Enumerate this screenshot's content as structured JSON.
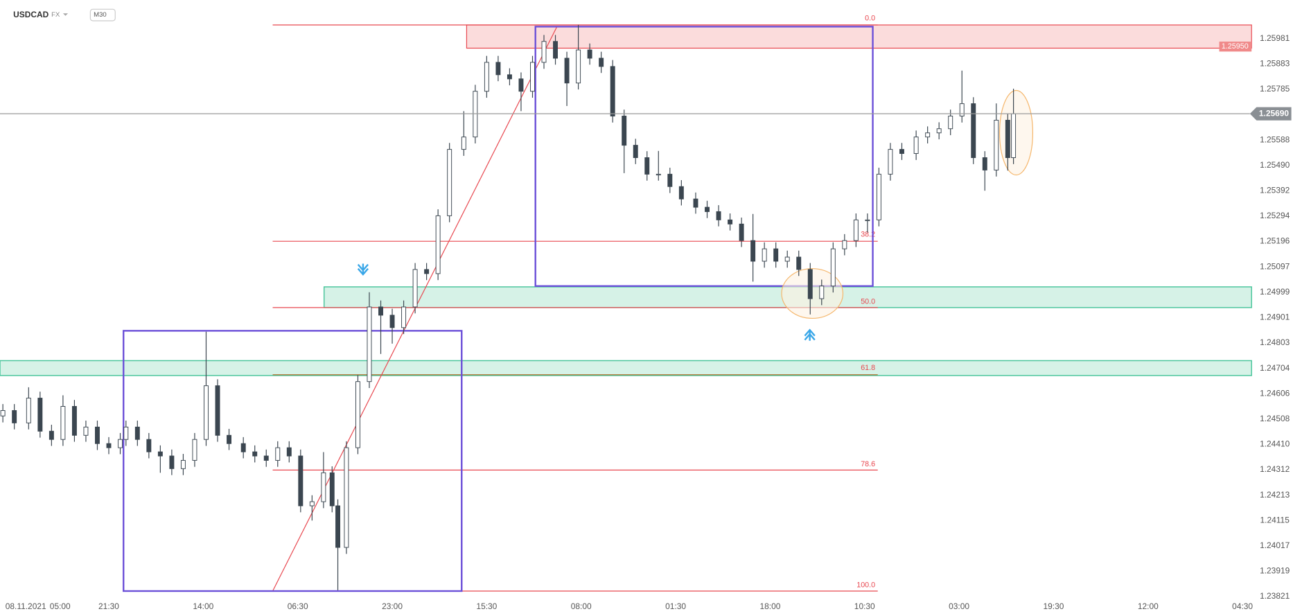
{
  "header": {
    "symbol": "USDCAD",
    "market": "FX",
    "interval": "M30"
  },
  "chart_data": {
    "type": "candlestick",
    "up_color": "#ffffff",
    "down_color": "#3b4650",
    "outline_color": "#3b4650",
    "x": [
      1,
      5,
      10,
      14,
      18,
      22,
      26,
      30,
      34,
      38,
      42,
      44,
      48,
      52,
      56,
      60,
      64,
      68,
      72,
      76,
      80,
      85,
      89,
      93,
      97,
      101,
      105,
      109,
      113,
      116,
      118,
      121,
      125,
      129,
      133,
      137,
      141,
      145,
      149,
      153,
      157,
      162,
      166,
      170,
      174,
      178,
      182,
      186,
      190,
      194,
      198,
      202,
      206,
      210,
      214,
      218,
      222,
      226,
      230,
      234,
      238,
      243,
      247,
      251,
      255,
      259,
      263,
      267,
      271,
      275,
      279,
      283,
      287,
      291,
      295,
      299,
      303,
      307,
      311,
      315,
      320,
      324,
      328,
      332,
      336,
      340,
      344,
      348,
      352,
      354
    ],
    "open": [
      1.2452,
      1.24541,
      1.24493,
      1.24589,
      1.24461,
      1.24429,
      1.24557,
      1.24445,
      1.24477,
      1.24413,
      1.24397,
      1.24429,
      1.24477,
      1.24429,
      1.24381,
      1.24365,
      1.24316,
      1.24348,
      1.24429,
      1.24637,
      1.24445,
      1.24413,
      1.24381,
      1.24365,
      1.24348,
      1.24397,
      1.24365,
      1.24172,
      1.24188,
      1.243,
      1.24172,
      1.24011,
      1.24397,
      1.24653,
      1.24942,
      1.2491,
      1.24862,
      1.24942,
      1.25087,
      1.25071,
      1.25295,
      1.25552,
      1.256,
      1.25777,
      1.25889,
      1.25841,
      1.25825,
      1.25777,
      1.25889,
      1.2597,
      1.25905,
      1.25809,
      1.25937,
      1.25905,
      1.25873,
      1.25681,
      1.25568,
      1.2552,
      1.25456,
      1.25456,
      1.25408,
      1.2536,
      1.25328,
      1.25311,
      1.25279,
      1.25263,
      1.25199,
      1.25119,
      1.25167,
      1.25119,
      1.25135,
      1.25087,
      1.24974,
      1.25023,
      1.25167,
      1.25199,
      1.25279,
      1.25279,
      1.25456,
      1.25552,
      1.25536,
      1.256,
      1.25616,
      1.25632,
      1.25681,
      1.25729,
      1.2552,
      1.25472,
      1.25665,
      1.2552
    ],
    "high": [
      1.24566,
      1.24566,
      1.24631,
      1.24614,
      1.24486,
      1.246,
      1.24582,
      1.24502,
      1.24502,
      1.24438,
      1.24454,
      1.24502,
      1.24502,
      1.24454,
      1.24406,
      1.2439,
      1.24373,
      1.24454,
      1.24846,
      1.24662,
      1.2447,
      1.24438,
      1.24406,
      1.2439,
      1.24422,
      1.24422,
      1.2439,
      1.24213,
      1.2438,
      1.24325,
      1.24197,
      1.24422,
      1.24678,
      1.24999,
      1.24967,
      1.24935,
      1.24967,
      1.25112,
      1.25112,
      1.2532,
      1.25577,
      1.257,
      1.25802,
      1.25914,
      1.25914,
      1.25866,
      1.2585,
      1.25914,
      1.25995,
      1.25995,
      1.2593,
      1.26034,
      1.25962,
      1.2593,
      1.25898,
      1.25706,
      1.25593,
      1.25545,
      1.25546,
      1.25481,
      1.25433,
      1.25385,
      1.25353,
      1.25336,
      1.25304,
      1.25288,
      1.25302,
      1.25192,
      1.25192,
      1.2516,
      1.2516,
      1.25112,
      1.25048,
      1.25192,
      1.25224,
      1.25304,
      1.25304,
      1.25481,
      1.25577,
      1.25577,
      1.25625,
      1.25641,
      1.25657,
      1.25706,
      1.25857,
      1.25754,
      1.25545,
      1.2573,
      1.2569,
      1.25787
    ],
    "low": [
      1.24495,
      1.24468,
      1.24468,
      1.24436,
      1.24404,
      1.24404,
      1.2442,
      1.2442,
      1.24388,
      1.24372,
      1.24372,
      1.24404,
      1.24404,
      1.24356,
      1.243,
      1.24291,
      1.24291,
      1.24323,
      1.24404,
      1.2442,
      1.24388,
      1.24356,
      1.2434,
      1.24323,
      1.24323,
      1.2434,
      1.24147,
      1.24115,
      1.24163,
      1.24147,
      1.23845,
      1.23986,
      1.24372,
      1.24628,
      1.2476,
      1.248,
      1.24837,
      1.24917,
      1.25046,
      1.25046,
      1.2527,
      1.25527,
      1.25575,
      1.25752,
      1.25816,
      1.258,
      1.257,
      1.25752,
      1.25864,
      1.2588,
      1.2572,
      1.25784,
      1.2588,
      1.25848,
      1.25656,
      1.2546,
      1.25495,
      1.25431,
      1.25431,
      1.25383,
      1.25335,
      1.25303,
      1.25286,
      1.25254,
      1.25238,
      1.25174,
      1.2504,
      1.25094,
      1.25094,
      1.25094,
      1.25062,
      1.24913,
      1.24949,
      1.24998,
      1.25142,
      1.25174,
      1.2523,
      1.25254,
      1.25431,
      1.25511,
      1.25511,
      1.25575,
      1.25591,
      1.25607,
      1.25656,
      1.25495,
      1.25392,
      1.25447,
      1.2547,
      1.25495
    ],
    "close": [
      1.24541,
      1.24493,
      1.24589,
      1.24461,
      1.24429,
      1.24557,
      1.24445,
      1.24477,
      1.24413,
      1.24397,
      1.24429,
      1.24477,
      1.24429,
      1.24381,
      1.24365,
      1.24316,
      1.24348,
      1.24429,
      1.24637,
      1.24445,
      1.24413,
      1.24381,
      1.24365,
      1.24348,
      1.24397,
      1.24365,
      1.24172,
      1.24188,
      1.243,
      1.24172,
      1.24011,
      1.24397,
      1.24653,
      1.24942,
      1.2491,
      1.24862,
      1.24942,
      1.25087,
      1.25071,
      1.25295,
      1.25552,
      1.256,
      1.25777,
      1.25889,
      1.25841,
      1.25825,
      1.25777,
      1.25889,
      1.2597,
      1.25905,
      1.25809,
      1.25937,
      1.25905,
      1.25873,
      1.25681,
      1.25568,
      1.2552,
      1.25456,
      1.25456,
      1.25408,
      1.2536,
      1.25328,
      1.25311,
      1.25279,
      1.25263,
      1.25199,
      1.25119,
      1.25167,
      1.25119,
      1.25135,
      1.25087,
      1.24974,
      1.25023,
      1.25167,
      1.25199,
      1.25279,
      1.25279,
      1.25456,
      1.25552,
      1.25536,
      1.256,
      1.25616,
      1.25632,
      1.25681,
      1.25729,
      1.2552,
      1.25472,
      1.25665,
      1.2552,
      1.2569
    ],
    "xlim": [
      0,
      436
    ],
    "xticks": [
      {
        "value": 9,
        "label": "08.11.2021"
      },
      {
        "value": 21,
        "label": "05:00"
      },
      {
        "value": 38,
        "label": "21:30"
      },
      {
        "value": 71,
        "label": "14:00"
      },
      {
        "value": 104,
        "label": "06:30"
      },
      {
        "value": 137,
        "label": "23:00"
      },
      {
        "value": 170,
        "label": "15:30"
      },
      {
        "value": 203,
        "label": "08:00"
      },
      {
        "value": 236,
        "label": "01:30"
      },
      {
        "value": 269,
        "label": "18:00"
      },
      {
        "value": 302,
        "label": "10:30"
      },
      {
        "value": 335,
        "label": "03:00"
      },
      {
        "value": 368,
        "label": "19:30"
      },
      {
        "value": 401,
        "label": "12:00"
      },
      {
        "value": 434,
        "label": "04:30"
      }
    ],
    "ylim": [
      1.2381,
      1.2613
    ],
    "yticks": [
      1.25981,
      1.25883,
      1.25785,
      1.25588,
      {
        "value": 1.2549,
        "label": "1.25490"
      },
      1.25392,
      1.25294,
      1.25196,
      1.25097,
      1.24999,
      1.24901,
      1.24803,
      1.24704,
      1.24606,
      1.24508,
      {
        "value": 1.2441,
        "label": "1.24410"
      },
      1.24312,
      1.24213,
      1.24115,
      1.24017,
      1.23919,
      1.23821
    ],
    "last_price": {
      "value": 1.2569,
      "label": "1.25690"
    },
    "zone_price": {
      "value": 1.2595,
      "label": "1.25950"
    },
    "fib_labels": [
      "0.0",
      "38.2",
      "50.0",
      "61.8",
      "78.6",
      "100.0"
    ]
  }
}
